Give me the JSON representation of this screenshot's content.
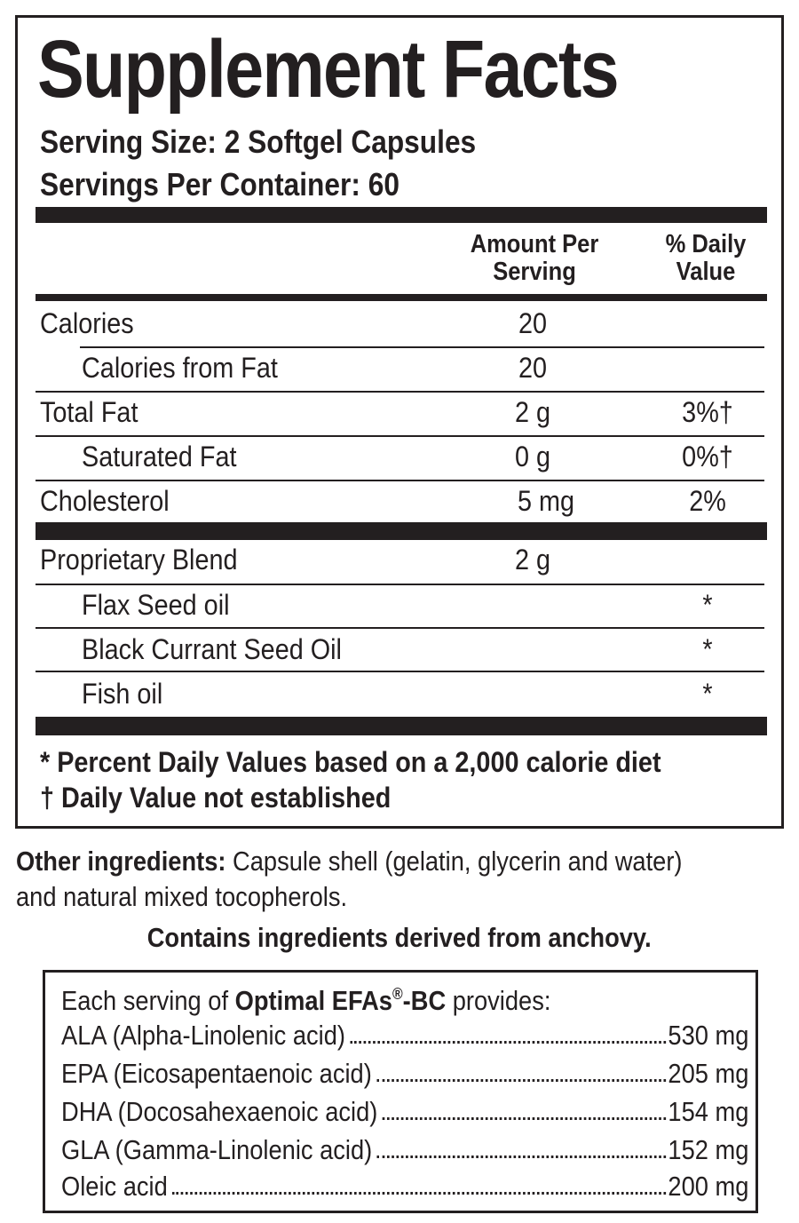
{
  "panel": {
    "title": "Supplement Facts",
    "serving_size": "Serving Size: 2 Softgel Capsules",
    "servings_per_container": "Servings Per Container: 60",
    "col_amount_line1": "Amount Per",
    "col_amount_line2": "Serving",
    "col_dv_line1": "% Daily",
    "col_dv_line2": "Value",
    "rows": [
      {
        "name": "Calories",
        "amount": "20",
        "dv": ""
      },
      {
        "name": "Calories from Fat",
        "amount": "20",
        "dv": ""
      },
      {
        "name": "Total Fat",
        "amount": "2 g",
        "dv": "3%†"
      },
      {
        "name": "Saturated Fat",
        "amount": "0 g",
        "dv": "0%†"
      },
      {
        "name": "Cholesterol",
        "amount": "5 mg",
        "dv": "2%"
      }
    ],
    "blend": {
      "name": "Proprietary Blend",
      "amount": "2 g",
      "items": [
        {
          "name": "Flax Seed oil",
          "dv": "*"
        },
        {
          "name": "Black Currant Seed Oil",
          "dv": "*"
        },
        {
          "name": "Fish oil",
          "dv": "*"
        }
      ]
    },
    "footnote_1": "* Percent Daily Values based on a 2,000 calorie diet",
    "footnote_2": "† Daily Value not established"
  },
  "other_ingredients": {
    "label": "Other ingredients:",
    "text_line1": " Capsule shell (gelatin, glycerin and water)",
    "text_line2": "and natural mixed tocopherols."
  },
  "contains": "Contains ingredients derived from anchovy.",
  "efa": {
    "intro_prefix": "Each serving of ",
    "product": "Optimal EFAs",
    "registered": "®",
    "product_suffix": "-BC",
    "intro_suffix": " provides:",
    "items": [
      {
        "name": "ALA (Alpha-Linolenic acid)",
        "amount": "530 mg"
      },
      {
        "name": "EPA (Eicosapentaenoic acid)",
        "amount": "205 mg"
      },
      {
        "name": "DHA (Docosahexaenoic acid)",
        "amount": "154 mg"
      },
      {
        "name": "GLA (Gamma-Linolenic acid)",
        "amount": "152 mg"
      },
      {
        "name": "Oleic acid",
        "amount": "200 mg"
      }
    ]
  }
}
